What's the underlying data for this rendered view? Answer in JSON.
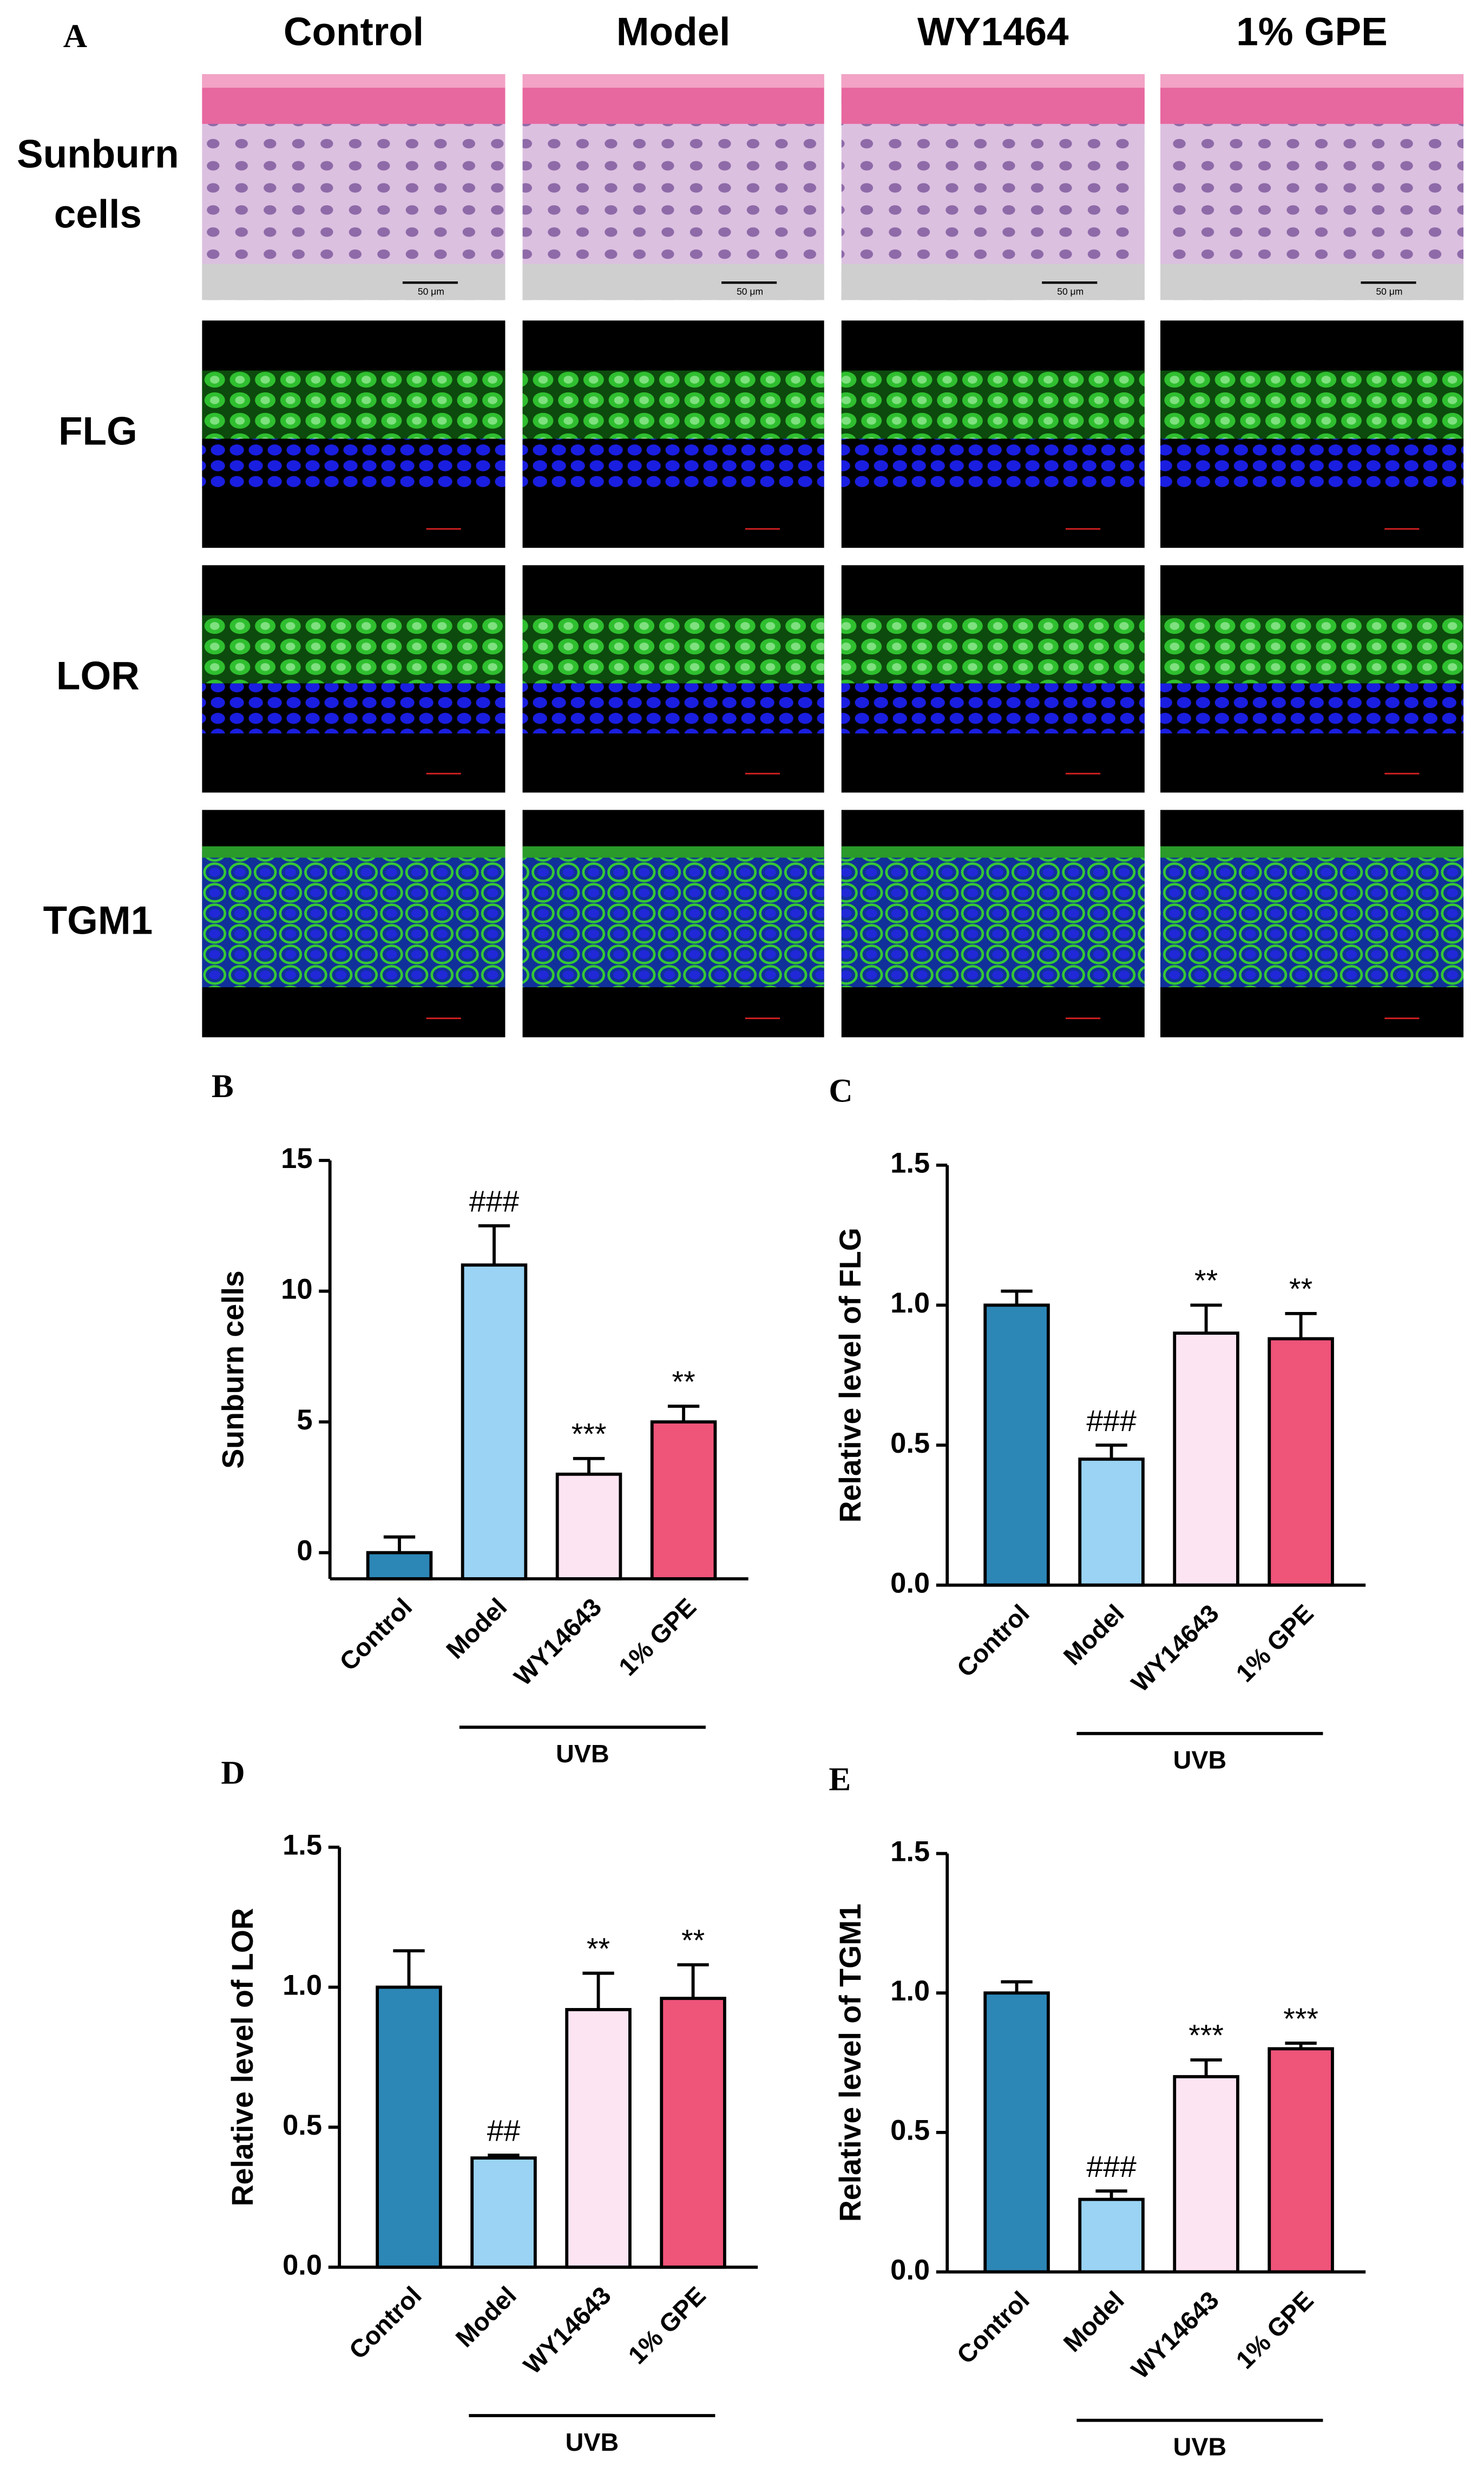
{
  "panel_a": {
    "label": "A",
    "columns": [
      "Control",
      "Model",
      "WY1464",
      "1% GPE"
    ],
    "rows": [
      [
        "Sunburn",
        "cells"
      ],
      [
        "FLG"
      ],
      [
        "LOR"
      ],
      [
        "TGM1"
      ]
    ],
    "scale_bar": "50 μm"
  },
  "chart_data": [
    {
      "type": "bar",
      "panel": "B",
      "y_label": "Sunburn cells",
      "categories": [
        "Control",
        "Model",
        "WY14643",
        "1% GPE"
      ],
      "values": [
        0,
        11,
        3,
        5
      ],
      "errors": [
        0.6,
        1.5,
        0.6,
        0.6
      ],
      "annotations": [
        null,
        "###",
        "***",
        "**"
      ],
      "colors": [
        "#2c86b6",
        "#9ad3f4",
        "#fde4f2",
        "#ef5479"
      ],
      "group_label": "UVB",
      "ylim": [
        -1,
        15
      ],
      "yticks": [
        0,
        5,
        10,
        15
      ]
    },
    {
      "type": "bar",
      "panel": "C",
      "y_label": "Relative level of FLG",
      "categories": [
        "Control",
        "Model",
        "WY14643",
        "1% GPE"
      ],
      "values": [
        1.0,
        0.45,
        0.9,
        0.88
      ],
      "errors": [
        0.05,
        0.05,
        0.1,
        0.09
      ],
      "annotations": [
        null,
        "###",
        "**",
        "**"
      ],
      "colors": [
        "#2c86b6",
        "#9ad3f4",
        "#fde4f2",
        "#ef5479"
      ],
      "group_label": "UVB",
      "ylim": [
        0,
        1.5
      ],
      "yticks": [
        {
          "value": 0,
          "label": "0.0"
        },
        0.5,
        {
          "value": 1,
          "label": "1.0"
        },
        1.5
      ]
    },
    {
      "type": "bar",
      "panel": "D",
      "y_label": "Relative level of LOR",
      "categories": [
        "Control",
        "Model",
        "WY14643",
        "1% GPE"
      ],
      "values": [
        1.0,
        0.39,
        0.92,
        0.96
      ],
      "errors": [
        0.13,
        0.01,
        0.13,
        0.12
      ],
      "annotations": [
        null,
        "##",
        "**",
        "**"
      ],
      "colors": [
        "#2c86b6",
        "#9ad3f4",
        "#fde4f2",
        "#ef5479"
      ],
      "group_label": "UVB",
      "ylim": [
        0,
        1.5
      ],
      "yticks": [
        {
          "value": 0,
          "label": "0.0"
        },
        0.5,
        {
          "value": 1,
          "label": "1.0"
        },
        1.5
      ]
    },
    {
      "type": "bar",
      "panel": "E",
      "y_label": "Relative level of TGM1",
      "categories": [
        "Control",
        "Model",
        "WY14643",
        "1% GPE"
      ],
      "values": [
        1.0,
        0.26,
        0.7,
        0.8
      ],
      "errors": [
        0.04,
        0.03,
        0.06,
        0.02
      ],
      "annotations": [
        null,
        "###",
        "***",
        "***"
      ],
      "colors": [
        "#2c86b6",
        "#9ad3f4",
        "#fde4f2",
        "#ef5479"
      ],
      "group_label": "UVB",
      "ylim": [
        0,
        1.5
      ],
      "yticks": [
        {
          "value": 0,
          "label": "0.0"
        },
        0.5,
        {
          "value": 1,
          "label": "1.0"
        },
        1.5
      ]
    }
  ]
}
